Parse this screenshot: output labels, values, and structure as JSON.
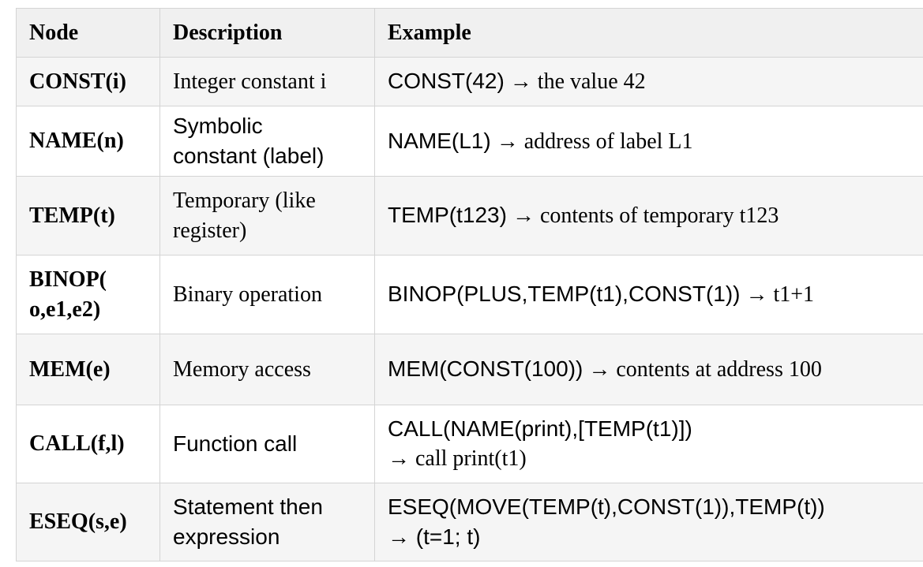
{
  "table": {
    "headers": {
      "node": "Node",
      "description": "Description",
      "example": "Example"
    },
    "rows": [
      {
        "node": "CONST(i)",
        "description": "Integer constant i",
        "example_code": "CONST(42)",
        "example_text": "→ the value 42"
      },
      {
        "node": "NAME(n)",
        "description_line1": "Symbolic",
        "description_line2": "constant (label)",
        "example_code": "NAME(L1)",
        "example_text": "→ address of label L1"
      },
      {
        "node": "TEMP(t)",
        "description_line1": "Temporary (like",
        "description_line2": "register)",
        "example_code": "TEMP(t123)",
        "example_text": "→ contents of temporary t123"
      },
      {
        "node_line1": "BINOP(",
        "node_line2": "o,e1,e2)",
        "description": "Binary operation",
        "example_code": "BINOP(PLUS,TEMP(t1),CONST(1))",
        "example_text": "→ t1+1"
      },
      {
        "node": "MEM(e)",
        "description": "Memory access",
        "example_code": "MEM(CONST(100))",
        "example_text": "→ contents at address 100"
      },
      {
        "node": "CALL(f,l)",
        "description": "Function call",
        "example_code": "CALL(NAME(print),[TEMP(t1)])",
        "example_text": "→ call print(t1)"
      },
      {
        "node": "ESEQ(s,e)",
        "description_line1": "Statement then",
        "description_line2": "expression",
        "example_code": "ESEQ(MOVE(TEMP(t),CONST(1)),TEMP(t))",
        "example_text": "→ (t=1; t)"
      }
    ]
  }
}
